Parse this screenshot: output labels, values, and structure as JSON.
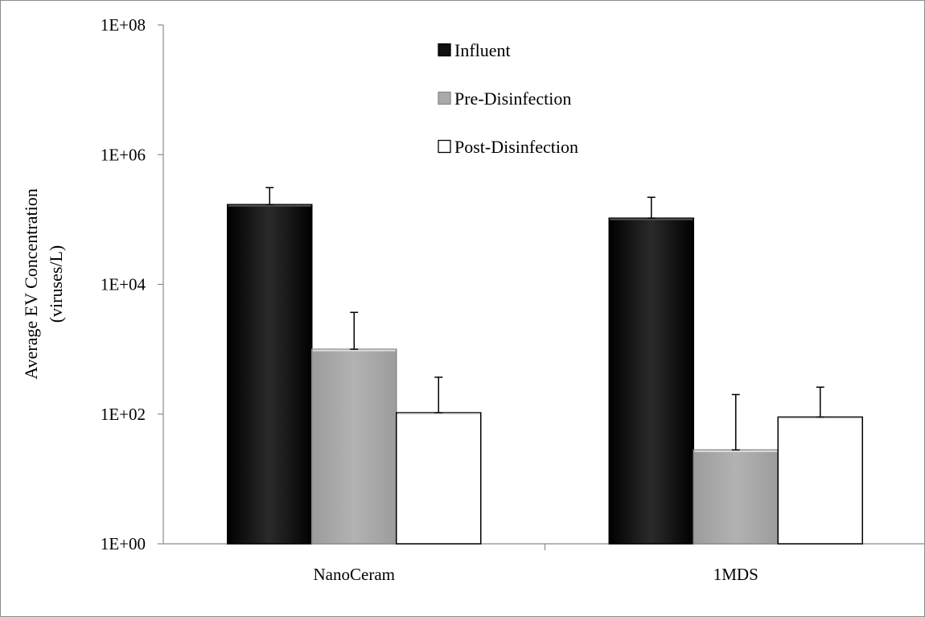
{
  "chart_data": {
    "type": "bar",
    "title": "",
    "xlabel": "",
    "ylabel_lines": [
      "Average EV Concentration",
      "(viruses/L)"
    ],
    "yscale": "log",
    "ylim": [
      1,
      100000000
    ],
    "yticks": [
      1,
      100,
      10000,
      1000000,
      100000000
    ],
    "ytick_labels": [
      "1E+00",
      "1E+02",
      "1E+04",
      "1E+06",
      "1E+08"
    ],
    "categories": [
      "NanoCeram",
      "1MDS"
    ],
    "legend_position": "top-center",
    "grid": false,
    "series": [
      {
        "name": "Influent",
        "color": "#111111",
        "values": [
          170000,
          105000
        ],
        "error_upper": [
          310000,
          220000
        ]
      },
      {
        "name": "Pre-Disinfection",
        "color": "#aaaaaa",
        "values": [
          1000,
          28
        ],
        "error_upper": [
          3700,
          200
        ]
      },
      {
        "name": "Post-Disinfection",
        "color": "#ffffff",
        "values": [
          105,
          90
        ],
        "error_upper": [
          370,
          260
        ]
      }
    ]
  }
}
